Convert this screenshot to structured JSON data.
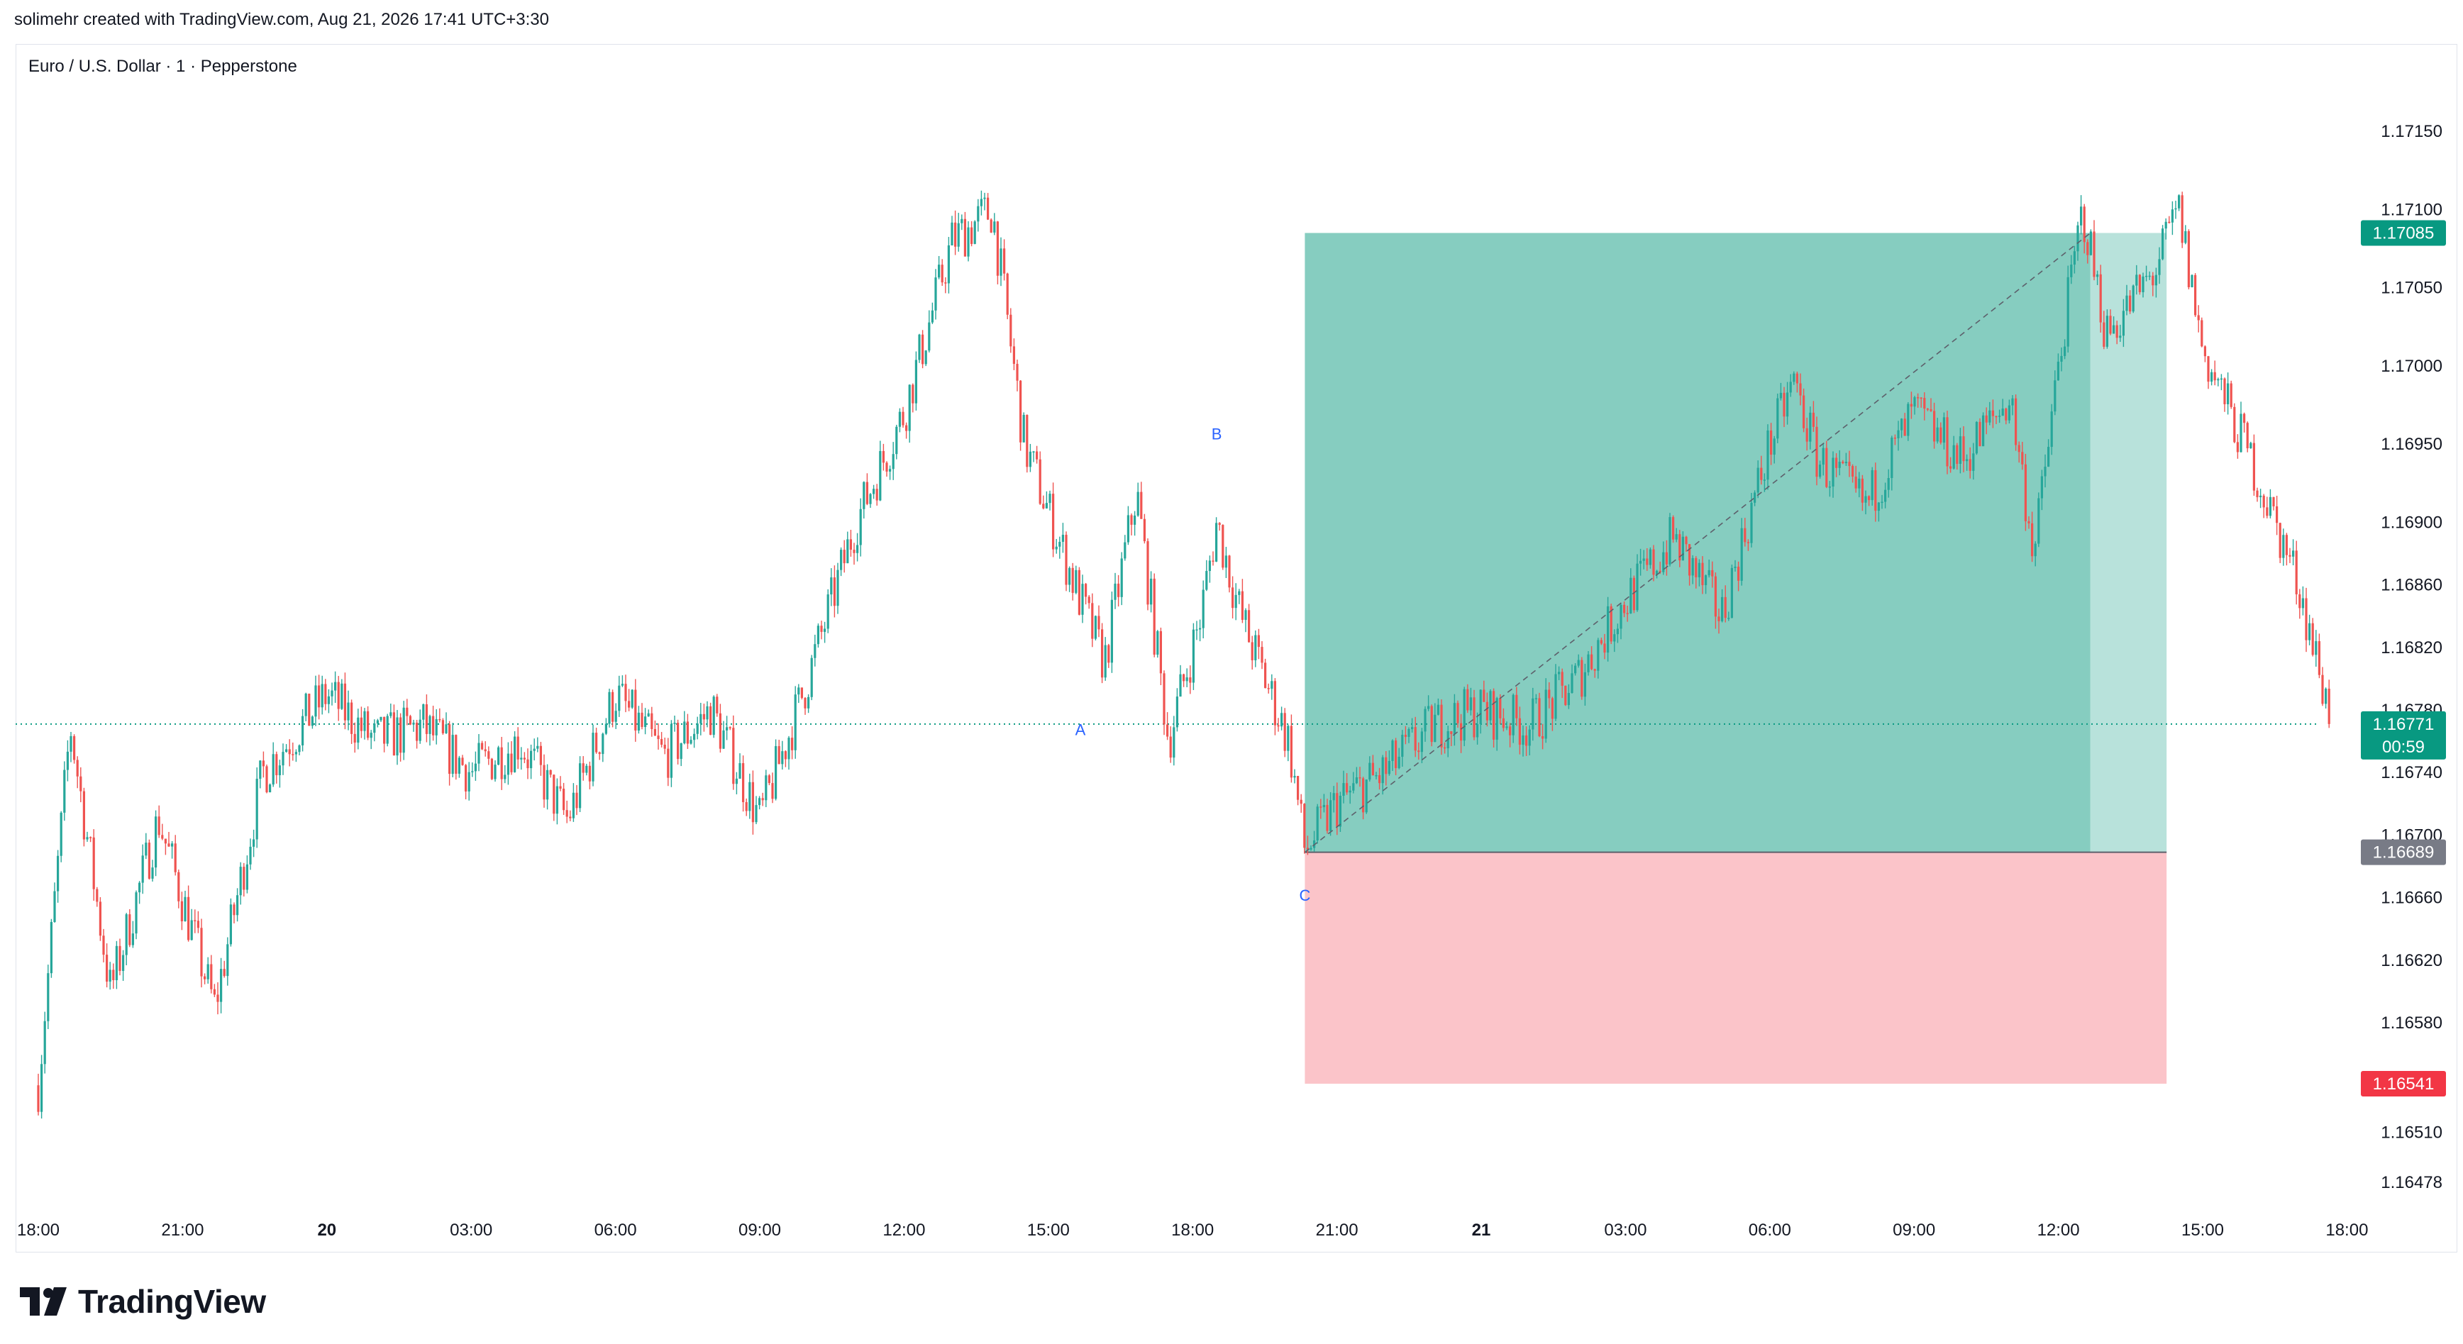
{
  "header": {
    "caption": "solimehr created with TradingView.com, Aug 21, 2026 17:41 UTC+3:30"
  },
  "legend": {
    "symbol": "Euro / U.S. Dollar · 1 · Pepperstone"
  },
  "branding": {
    "logo_text": "TradingView",
    "logo_icon": "tradingview-logo-icon"
  },
  "colors": {
    "up": "#26a69a",
    "down": "#ef5350",
    "profit_zone": "#86cdc0",
    "profit_zone_light": "#b8e2db",
    "loss_zone": "#fbc4c9",
    "entry_badge": "#787b86",
    "target_badge": "#089981",
    "stop_badge": "#f23645",
    "wave_label": "#2962ff",
    "current_line": "#089981"
  },
  "chart_data": {
    "type": "candlestick",
    "title": "Euro / U.S. Dollar · 1 · Pepperstone",
    "symbol": "EURUSD",
    "timeframe": "1",
    "broker": "Pepperstone",
    "y_ticks": [
      "1.17150",
      "1.17100",
      "1.17050",
      "1.17000",
      "1.16950",
      "1.16900",
      "1.16860",
      "1.16820",
      "1.16780",
      "1.16740",
      "1.16700",
      "1.16660",
      "1.16620",
      "1.16580",
      "1.16510",
      "1.16478"
    ],
    "x_ticks": [
      {
        "label": "18:00",
        "bold": false
      },
      {
        "label": "21:00",
        "bold": false
      },
      {
        "label": "20",
        "bold": true
      },
      {
        "label": "03:00",
        "bold": false
      },
      {
        "label": "06:00",
        "bold": false
      },
      {
        "label": "09:00",
        "bold": false
      },
      {
        "label": "12:00",
        "bold": false
      },
      {
        "label": "15:00",
        "bold": false
      },
      {
        "label": "18:00",
        "bold": false
      },
      {
        "label": "21:00",
        "bold": false
      },
      {
        "label": "21",
        "bold": true
      },
      {
        "label": "03:00",
        "bold": false
      },
      {
        "label": "06:00",
        "bold": false
      },
      {
        "label": "09:00",
        "bold": false
      },
      {
        "label": "12:00",
        "bold": false
      },
      {
        "label": "15:00",
        "bold": false
      },
      {
        "label": "18:00",
        "bold": false
      }
    ],
    "price_path": [
      [
        "19 18:00",
        1.1654
      ],
      [
        "19 18:40",
        1.1677
      ],
      [
        "19 19:30",
        1.166
      ],
      [
        "19 20:30",
        1.1671
      ],
      [
        "19 21:40",
        1.1659
      ],
      [
        "19 22:40",
        1.1674
      ],
      [
        "20 00:00",
        1.1679
      ],
      [
        "20 01:00",
        1.1676
      ],
      [
        "20 02:00",
        1.1677
      ],
      [
        "20 03:00",
        1.1674
      ],
      [
        "20 04:00",
        1.1676
      ],
      [
        "20 05:00",
        1.1671
      ],
      [
        "20 06:00",
        1.1679
      ],
      [
        "20 07:00",
        1.1675
      ],
      [
        "20 08:00",
        1.1678
      ],
      [
        "20 09:00",
        1.1671
      ],
      [
        "20 10:00",
        1.168
      ],
      [
        "20 11:00",
        1.169
      ],
      [
        "20 12:00",
        1.1697
      ],
      [
        "20 13:00",
        1.1708
      ],
      [
        "20 13:50",
        1.171
      ],
      [
        "20 14:30",
        1.1695
      ],
      [
        "20 15:40",
        1.1685
      ],
      [
        "20 16:10",
        1.1681
      ],
      [
        "20 16:50",
        1.1692
      ],
      [
        "20 17:30",
        1.1676
      ],
      [
        "20 18:10",
        1.1684
      ],
      [
        "20 18:30",
        1.169
      ],
      [
        "20 19:00",
        1.1684
      ],
      [
        "20 20:00",
        1.1676
      ],
      [
        "20 20:20",
        1.1669
      ],
      [
        "20 21:00",
        1.1672
      ],
      [
        "20 22:00",
        1.1674
      ],
      [
        "20 23:00",
        1.1677
      ],
      [
        "21 00:00",
        1.1678
      ],
      [
        "21 01:00",
        1.1677
      ],
      [
        "21 02:00",
        1.168
      ],
      [
        "21 03:00",
        1.1685
      ],
      [
        "21 04:00",
        1.1689
      ],
      [
        "21 05:00",
        1.1684
      ],
      [
        "21 06:00",
        1.1695
      ],
      [
        "21 06:30",
        1.1699
      ],
      [
        "21 07:00",
        1.1694
      ],
      [
        "21 08:00",
        1.1691
      ],
      [
        "21 09:00",
        1.1697
      ],
      [
        "21 10:00",
        1.1694
      ],
      [
        "21 11:00",
        1.1698
      ],
      [
        "21 11:30",
        1.1688
      ],
      [
        "21 12:00",
        1.17
      ],
      [
        "21 12:30",
        1.171
      ],
      [
        "21 13:00",
        1.1702
      ],
      [
        "21 14:00",
        1.1706
      ],
      [
        "21 14:30",
        1.171
      ],
      [
        "21 15:00",
        1.1701
      ],
      [
        "21 16:00",
        1.1694
      ],
      [
        "21 17:00",
        1.1686
      ],
      [
        "21 17:41",
        1.16771
      ]
    ],
    "position": {
      "type": "long",
      "start": "20 20:20",
      "end": "21 14:15",
      "entry": 1.16689,
      "target": 1.17085,
      "stop": 1.16541,
      "closed_at": "21 12:40"
    },
    "wave_labels": [
      {
        "text": "A",
        "time": "20 15:40",
        "price": 1.16764
      },
      {
        "text": "B",
        "time": "20 18:30",
        "price": 1.16953
      },
      {
        "text": "C",
        "time": "20 20:20",
        "price": 1.16658
      }
    ],
    "price_badges": {
      "entry": "1.16689",
      "target": "1.17085",
      "stop": "1.16541",
      "current": "1.16771",
      "countdown": "00:59"
    },
    "current_price": 1.16771,
    "grid": false
  }
}
